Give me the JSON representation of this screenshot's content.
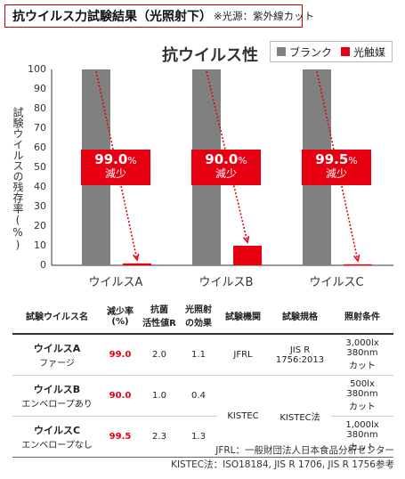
{
  "header": {
    "title": "抗ウイルス力試験結果（光照射下）",
    "note": "※光源：紫外線カット"
  },
  "chart_data": {
    "type": "bar",
    "title": "抗ウイルス性",
    "ylabel": "試験ウイルスの残存率(%)",
    "categories": [
      "ウイルスA",
      "ウイルスB",
      "ウイルスC"
    ],
    "ylim": [
      0,
      100
    ],
    "yticks": [
      0,
      10,
      20,
      30,
      40,
      50,
      60,
      70,
      80,
      90,
      100
    ],
    "series": [
      {
        "name": "ブランク",
        "color": "#808080",
        "values": [
          100,
          100,
          100
        ]
      },
      {
        "name": "光触媒",
        "color": "#e60012",
        "values": [
          1.0,
          10.0,
          0.5
        ]
      }
    ],
    "annotations": [
      {
        "category": "ウイルスA",
        "value": "99.0",
        "unit": "%",
        "label": "減少"
      },
      {
        "category": "ウイルスB",
        "value": "90.0",
        "unit": "%",
        "label": "減少"
      },
      {
        "category": "ウイルスC",
        "value": "99.5",
        "unit": "%",
        "label": "減少"
      }
    ],
    "legend_position": "top-right",
    "grid": false
  },
  "table": {
    "headers": [
      "試験ウイルス名",
      "減少率\n(%)",
      "抗菌\n活性値R",
      "光照射\nの効果",
      "試験機関",
      "試験規格",
      "照射条件"
    ],
    "rows": [
      {
        "name": "ウイルスA",
        "sub": "ファージ",
        "rate": "99.0",
        "r_value": "2.0",
        "effect": "1.1",
        "condition": "3,000lx\n380nm\nカット"
      },
      {
        "name": "ウイルスB",
        "sub": "エンベロープあり",
        "rate": "90.0",
        "r_value": "1.0",
        "effect": "0.4",
        "condition": "500lx\n380nm\nカット"
      },
      {
        "name": "ウイルスC",
        "sub": "エンベロープなし",
        "rate": "99.5",
        "r_value": "2.3",
        "effect": "1.3",
        "condition": "1,000lx\n380nm\nカット"
      }
    ],
    "org_a": "JFRL",
    "std_a": "JIS R\n1756:2013",
    "org_bc": "KISTEC",
    "std_bc": "KISTEC法"
  },
  "footnotes": [
    "JFRL：一般財団法人日本食品分析センター",
    "KISTEC法：ISO18184, JIS R 1706, JIS R 1756参考"
  ]
}
